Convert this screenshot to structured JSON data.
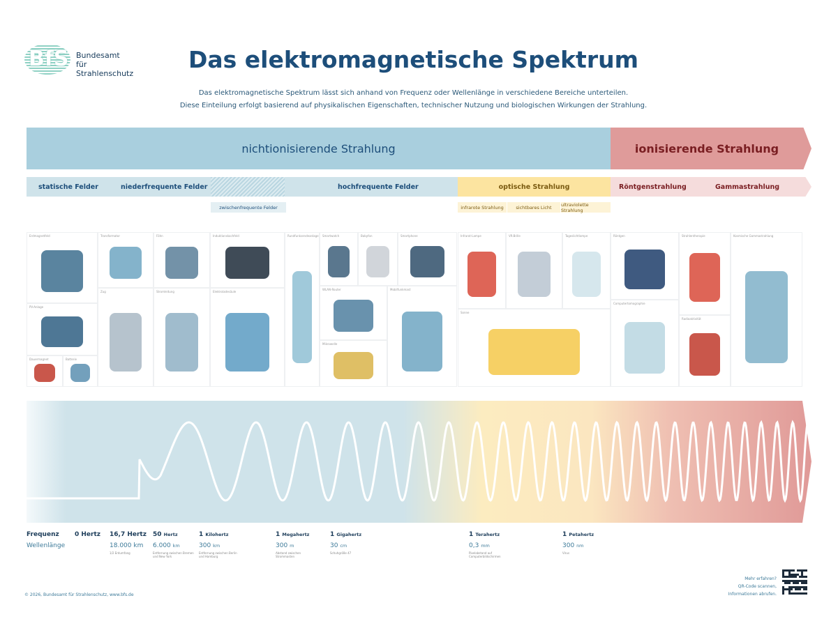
{
  "logo": {
    "letters": "BfS",
    "org_line1": "Bundesamt",
    "org_line2": "für Strahlenschutz"
  },
  "title": "Das elektromagnetische Spektrum",
  "subtitle": [
    "Das elektromagnetische Spektrum lässt sich anhand von Frequenz oder Wellenlänge in verschiedene Bereiche unterteilen.",
    "Diese Einteilung erfolgt basierend auf physikalischen Eigenschaften, technischer Nutzung und biologischen Wirkungen der Strahlung."
  ],
  "bands": {
    "non_ionizing": "nichtionisierende Strahlung",
    "ionizing": "ionisierende Strahlung"
  },
  "categories": {
    "static": "statische Felder",
    "low": "niederfrequente Felder",
    "high": "hochfrequente Felder",
    "optical": "optische Strahlung",
    "xray": "Röntgenstrahlung",
    "gamma": "Gammastrahlung"
  },
  "subcategories": {
    "intermediate": "zwischenfrequente Felder",
    "infrared": "infrarote Strahlung",
    "visible": "sichtbares Licht",
    "uv": "ultraviolette Strahlung"
  },
  "colors": {
    "blue": "#a9cfde",
    "red": "#df9b9a",
    "yellow": "#fce4a0",
    "title": "#1d4e7a"
  },
  "panels": [
    {
      "label": "Erdmagnetfeld",
      "icon": "earth-icon"
    },
    {
      "label": "PV-Anlage",
      "icon": "solar-panel-icon"
    },
    {
      "label": "Dauermagnet",
      "icon": "magnet-icon"
    },
    {
      "label": "Batterie",
      "icon": "battery-icon"
    },
    {
      "label": "Transformator",
      "icon": "transformer-icon"
    },
    {
      "label": "Zug",
      "icon": "train-icon"
    },
    {
      "label": "Föhn",
      "icon": "hair-dryer-icon"
    },
    {
      "label": "Stromleitung",
      "icon": "power-pylon-icon"
    },
    {
      "label": "Induktionskochfeld",
      "icon": "induction-hob-icon"
    },
    {
      "label": "Elektroladesäule",
      "icon": "electric-car-icon"
    },
    {
      "label": "Rundfunksendeanlage",
      "icon": "tv-tower-icon"
    },
    {
      "label": "Smartwatch",
      "icon": "smartwatch-icon"
    },
    {
      "label": "Babyfon",
      "icon": "baby-monitor-icon"
    },
    {
      "label": "Smartphone",
      "icon": "smartphone-icon"
    },
    {
      "label": "WLAN-Router",
      "icon": "router-icon"
    },
    {
      "label": "Mikrowelle",
      "icon": "microwave-icon"
    },
    {
      "label": "Mobilfunkmast",
      "icon": "cell-tower-icon"
    },
    {
      "label": "Infrarot-Lampe",
      "icon": "infrared-lamp-icon"
    },
    {
      "label": "VR-Brille",
      "icon": "vr-headset-icon"
    },
    {
      "label": "Tageslichtlampe",
      "icon": "uv-lamp-icon"
    },
    {
      "label": "Sonne",
      "icon": "sun-icon"
    },
    {
      "label": "Röntgen",
      "icon": "xray-image-icon"
    },
    {
      "label": "Computertomographie",
      "icon": "ct-scanner-icon"
    },
    {
      "label": "Strahlentherapie",
      "icon": "radiotherapy-icon"
    },
    {
      "label": "Radioaktivität",
      "icon": "atom-nucleus-icon"
    },
    {
      "label": "Kosmische Gammastrahlung",
      "icon": "cosmic-ray-icon"
    }
  ],
  "scale": {
    "freq_label": "Frequenz",
    "wave_label": "Wellenlänge",
    "entries": [
      {
        "freq_num": "0 Hertz",
        "freq_unit": "",
        "wave_num": "",
        "wave_unit": "",
        "note": ""
      },
      {
        "freq_num": "16,7 Hertz",
        "freq_unit": "",
        "wave_num": "18.000 km",
        "wave_unit": "",
        "note": "1/2 Erdumfang"
      },
      {
        "freq_num": "50",
        "freq_unit": "Hertz",
        "wave_num": "6.000",
        "wave_unit": "km",
        "note": "Entfernung zwischen Bremen und New York"
      },
      {
        "freq_num": "1",
        "freq_unit": "Kilohertz",
        "wave_num": "300",
        "wave_unit": "km",
        "note": "Entfernung zwischen Berlin und Hamburg"
      },
      {
        "freq_num": "1",
        "freq_unit": "Megahertz",
        "wave_num": "300",
        "wave_unit": "m",
        "note": "Abstand zwischen Strommasten"
      },
      {
        "freq_num": "1",
        "freq_unit": "Gigahertz",
        "wave_num": "30",
        "wave_unit": "cm",
        "note": "Schuhgröße 47"
      },
      {
        "freq_num": "1",
        "freq_unit": "Terahertz",
        "wave_num": "0,3",
        "wave_unit": "mm",
        "note": "Pixelabstand auf Computerbildschirmen"
      },
      {
        "freq_num": "1",
        "freq_unit": "Petahertz",
        "wave_num": "300",
        "wave_unit": "nm",
        "note": "Virus"
      }
    ]
  },
  "footer": {
    "copyright": "© 2026, Bundesamt für Strahlenschutz, www.bfs.de",
    "more_1": "Mehr erfahren?",
    "more_2": "QR-Code scannen,",
    "more_3": "Informationen abrufen."
  }
}
